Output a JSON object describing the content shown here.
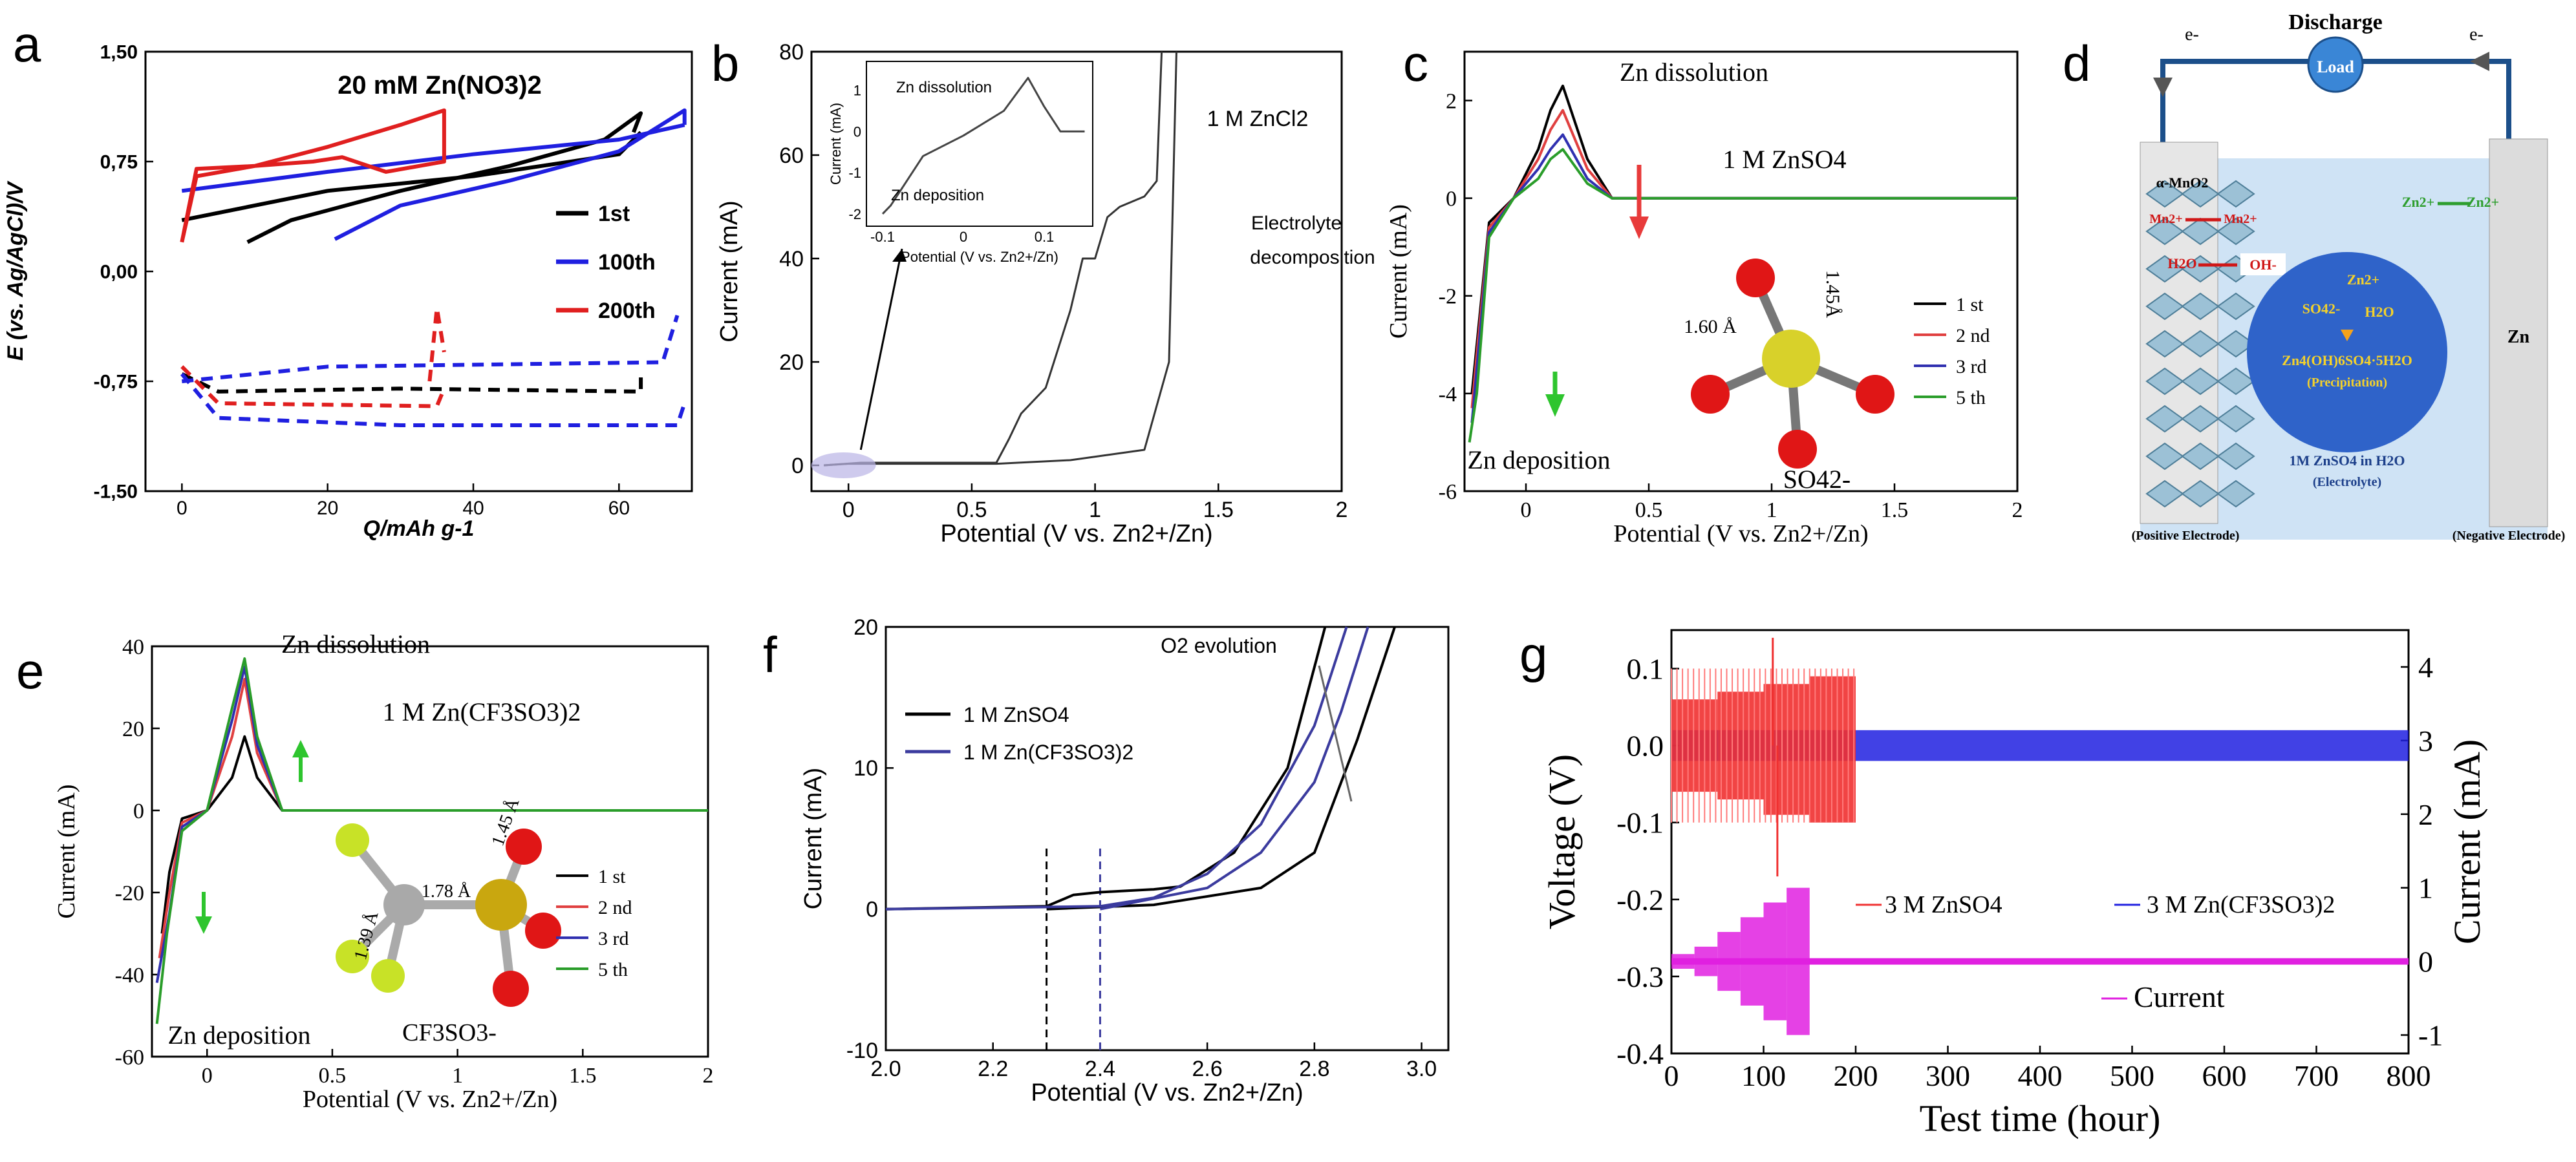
{
  "figure": {
    "panels": [
      "a",
      "b",
      "c",
      "d",
      "e",
      "f",
      "g"
    ]
  },
  "chart_data": [
    {
      "panel": "a",
      "type": "line",
      "title": "20 mM Zn(NO3)2",
      "xlabel": "Q/mAh g-1",
      "ylabel": "E (vs. Ag/AgCl)/V",
      "xlim": [
        -5,
        70
      ],
      "ylim": [
        -1.5,
        1.5
      ],
      "xticks": [
        0,
        20,
        40,
        60
      ],
      "yticks": [
        -1.5,
        -0.75,
        0.0,
        0.75,
        1.5
      ],
      "ytick_labels": [
        "-1,50",
        "-0,75",
        "0,00",
        "0,75",
        "1,50"
      ],
      "colors": {
        "1st": "#000000",
        "100th": "#1f1fe0",
        "200th": "#e01f1f"
      },
      "legend": [
        "1st",
        "100th",
        "200th"
      ],
      "series": [
        {
          "name": "1st",
          "kind": "charge",
          "x": [
            9,
            15,
            30,
            45,
            58,
            63,
            62
          ],
          "y": [
            0.2,
            0.35,
            0.55,
            0.72,
            0.9,
            1.08,
            0.95
          ]
        },
        {
          "name": "1st",
          "kind": "discharge",
          "x": [
            0,
            20,
            40,
            60,
            63
          ],
          "y": [
            0.35,
            0.55,
            0.65,
            0.8,
            0.95
          ]
        },
        {
          "name": "100th",
          "kind": "charge",
          "x": [
            21,
            30,
            45,
            60,
            69,
            69
          ],
          "y": [
            0.22,
            0.45,
            0.62,
            0.82,
            1.1,
            1.0
          ]
        },
        {
          "name": "100th",
          "kind": "discharge",
          "x": [
            0,
            20,
            40,
            60,
            69
          ],
          "y": [
            0.55,
            0.68,
            0.8,
            0.9,
            1.0
          ]
        },
        {
          "name": "200th",
          "kind": "loop",
          "x": [
            0,
            2,
            10,
            20,
            30,
            36,
            36,
            28,
            22,
            18,
            10,
            2,
            0
          ],
          "y": [
            0.2,
            0.65,
            0.72,
            0.85,
            1.0,
            1.1,
            0.75,
            0.68,
            0.78,
            0.75,
            0.72,
            0.7,
            0.2
          ]
        },
        {
          "name": "1st",
          "kind": "stripping",
          "x": [
            0,
            5,
            30,
            63,
            63
          ],
          "y": [
            -0.7,
            -0.82,
            -0.8,
            -0.82,
            -0.7
          ]
        },
        {
          "name": "100th",
          "kind": "stripping",
          "x": [
            0,
            5,
            30,
            68,
            69
          ],
          "y": [
            -0.7,
            -1.0,
            -1.05,
            -1.05,
            -0.9
          ]
        },
        {
          "name": "100th",
          "kind": "plating",
          "x": [
            0,
            20,
            66,
            68
          ],
          "y": [
            -0.75,
            -0.65,
            -0.62,
            -0.3
          ]
        },
        {
          "name": "200th",
          "kind": "stripping",
          "x": [
            0,
            5,
            35,
            36
          ],
          "y": [
            -0.65,
            -0.9,
            -0.92,
            -0.8
          ]
        },
        {
          "name": "200th",
          "kind": "spike",
          "x": [
            34,
            35,
            36
          ],
          "y": [
            -0.75,
            -0.25,
            -0.55
          ]
        }
      ]
    },
    {
      "panel": "b",
      "type": "line",
      "label": "1 M ZnCl2",
      "xlabel": "Potential (V vs. Zn2+/Zn)",
      "ylabel": "Current (mA)",
      "xlim": [
        -0.15,
        2.0
      ],
      "ylim": [
        -5,
        80
      ],
      "xticks": [
        0.0,
        0.5,
        1.0,
        1.5,
        2.0
      ],
      "yticks": [
        0,
        20,
        40,
        60,
        80
      ],
      "annotation": "Electrolyte decomposition",
      "inset": {
        "labels": [
          "Zn dissolution",
          "Zn deposition"
        ],
        "xlabel": "Potential (V vs. Zn2+/Zn)",
        "ylabel": "Current (mA)",
        "xticks": [
          -0.1,
          0.0,
          0.1
        ],
        "yticks": [
          -2,
          -1,
          0,
          1
        ],
        "x": [
          -0.1,
          -0.09,
          -0.05,
          0.0,
          0.05,
          0.08,
          0.1,
          0.12,
          0.15
        ],
        "y": [
          -2,
          -1.8,
          -0.6,
          -0.1,
          0.5,
          1.3,
          0.6,
          0.0,
          0.0
        ]
      },
      "series": [
        {
          "name": "forward",
          "x": [
            -0.1,
            0.05,
            0.6,
            0.65,
            0.7,
            0.8,
            0.9,
            0.95,
            1.0,
            1.05,
            1.1,
            1.2,
            1.25,
            1.27
          ],
          "y": [
            0,
            0.5,
            0.5,
            5,
            10,
            15,
            30,
            40,
            40,
            48,
            50,
            52,
            55,
            80
          ]
        },
        {
          "name": "reverse",
          "x": [
            -0.1,
            0.0,
            0.3,
            0.6,
            0.9,
            1.2,
            1.3,
            1.33
          ],
          "y": [
            0,
            0.3,
            0.3,
            0.3,
            1,
            3,
            20,
            80
          ]
        }
      ]
    },
    {
      "panel": "c",
      "type": "line",
      "labels": [
        "Zn dissolution",
        "1 M ZnSO4",
        "Zn deposition",
        "SO42-"
      ],
      "molecule_labels": [
        "1.60 Å",
        "1.45Å"
      ],
      "xlabel": "Potential (V vs. Zn2+/Zn)",
      "ylabel": "Current (mA)",
      "xlim": [
        -0.25,
        2.0
      ],
      "ylim": [
        -6,
        3
      ],
      "xticks": [
        0.0,
        0.5,
        1.0,
        1.5,
        2.0
      ],
      "yticks": [
        -6,
        -4,
        -2,
        0,
        2
      ],
      "legend": [
        "1 st",
        "2 nd",
        "3 rd",
        "5 th"
      ],
      "colors": [
        "#000000",
        "#e04040",
        "#3030b0",
        "#2a9d2a"
      ],
      "series": [
        {
          "name": "1 st",
          "x": [
            -0.22,
            -0.2,
            -0.15,
            -0.05,
            0.05,
            0.1,
            0.15,
            0.25,
            0.35,
            2.0
          ],
          "y": [
            -4.0,
            -3.0,
            -0.5,
            0.0,
            1.0,
            1.8,
            2.3,
            0.8,
            0.0,
            0.0
          ]
        },
        {
          "name": "2 nd",
          "x": [
            -0.22,
            -0.2,
            -0.15,
            -0.05,
            0.05,
            0.1,
            0.15,
            0.25,
            0.35,
            2.0
          ],
          "y": [
            -4.3,
            -3.2,
            -0.6,
            0.0,
            0.8,
            1.4,
            1.8,
            0.6,
            0.0,
            0.0
          ]
        },
        {
          "name": "3 rd",
          "x": [
            -0.22,
            -0.2,
            -0.15,
            -0.05,
            0.05,
            0.1,
            0.15,
            0.25,
            0.35,
            2.0
          ],
          "y": [
            -4.6,
            -3.5,
            -0.7,
            0.0,
            0.6,
            1.0,
            1.3,
            0.4,
            0.0,
            0.0
          ]
        },
        {
          "name": "5 th",
          "x": [
            -0.23,
            -0.2,
            -0.15,
            -0.05,
            0.05,
            0.1,
            0.15,
            0.25,
            0.35,
            2.0
          ],
          "y": [
            -5.0,
            -4.0,
            -0.8,
            0.0,
            0.4,
            0.8,
            1.0,
            0.3,
            0.0,
            0.0
          ]
        }
      ]
    },
    {
      "panel": "e",
      "type": "line",
      "labels": [
        "Zn dissolution",
        "1 M Zn(CF3SO3)2",
        "Zn deposition",
        "CF3SO3-"
      ],
      "molecule_labels": [
        "1.78 Å",
        "1.45 Å",
        "1.39 Å"
      ],
      "xlabel": "Potential (V vs. Zn2+/Zn)",
      "ylabel": "Current (mA)",
      "xlim": [
        -0.22,
        2.0
      ],
      "ylim": [
        -60,
        40
      ],
      "xticks": [
        0.0,
        0.5,
        1.0,
        1.5,
        2.0
      ],
      "yticks": [
        -60,
        -40,
        -20,
        0,
        20,
        40
      ],
      "legend": [
        "1 st",
        "2 nd",
        "3 rd",
        "5 th"
      ],
      "colors": [
        "#000000",
        "#e04040",
        "#3030b0",
        "#2a9d2a"
      ],
      "series": [
        {
          "name": "1 st",
          "x": [
            -0.18,
            -0.15,
            -0.1,
            0.0,
            0.1,
            0.15,
            0.2,
            0.3,
            2.0
          ],
          "y": [
            -30,
            -15,
            -2,
            0,
            8,
            18,
            8,
            0,
            0
          ]
        },
        {
          "name": "2 nd",
          "x": [
            -0.19,
            -0.15,
            -0.1,
            0.0,
            0.1,
            0.15,
            0.2,
            0.3,
            2.0
          ],
          "y": [
            -36,
            -20,
            -3,
            0,
            18,
            32,
            14,
            0,
            0
          ]
        },
        {
          "name": "3 rd",
          "x": [
            -0.2,
            -0.15,
            -0.1,
            0.0,
            0.1,
            0.15,
            0.2,
            0.3,
            2.0
          ],
          "y": [
            -42,
            -25,
            -4,
            0,
            22,
            35,
            16,
            0,
            0
          ]
        },
        {
          "name": "5 th",
          "x": [
            -0.2,
            -0.16,
            -0.1,
            0.0,
            0.1,
            0.15,
            0.2,
            0.3,
            2.0
          ],
          "y": [
            -52,
            -30,
            -5,
            0,
            25,
            37,
            18,
            0,
            0
          ]
        }
      ]
    },
    {
      "panel": "f",
      "type": "line",
      "annotation": "O2 evolution",
      "xlabel": "Potential (V vs. Zn2+/Zn)",
      "ylabel": "Current (mA)",
      "xlim": [
        2.0,
        3.05
      ],
      "ylim": [
        -10,
        20
      ],
      "xticks": [
        2.0,
        2.2,
        2.4,
        2.6,
        2.8,
        3.0
      ],
      "yticks": [
        -10,
        0,
        10,
        20
      ],
      "dashed_lines_x": [
        2.3,
        2.4
      ],
      "legend": [
        "1 M ZnSO4",
        "1 M Zn(CF3SO3)2"
      ],
      "colors": [
        "#000000",
        "#3b3b9e"
      ],
      "series": [
        {
          "name": "1 M ZnSO4 fwd",
          "x": [
            2.0,
            2.3,
            2.35,
            2.4,
            2.5,
            2.55,
            2.65,
            2.75,
            2.82
          ],
          "y": [
            0,
            0.2,
            1.0,
            1.2,
            1.4,
            1.6,
            4,
            10,
            20
          ]
        },
        {
          "name": "1 M ZnSO4 rev",
          "x": [
            2.3,
            2.5,
            2.7,
            2.8,
            2.88,
            2.95
          ],
          "y": [
            0,
            0.3,
            1.5,
            4,
            12,
            20
          ]
        },
        {
          "name": "1 M Zn(CF3SO3)2 fwd",
          "x": [
            2.0,
            2.4,
            2.5,
            2.6,
            2.7,
            2.8,
            2.86
          ],
          "y": [
            0,
            0.2,
            0.8,
            2.5,
            6,
            13,
            20
          ]
        },
        {
          "name": "1 M Zn(CF3SO3)2 rev",
          "x": [
            2.4,
            2.6,
            2.7,
            2.8,
            2.85,
            2.9
          ],
          "y": [
            0,
            1.5,
            4,
            9,
            14,
            20
          ]
        }
      ]
    },
    {
      "panel": "g",
      "type": "line",
      "xlabel": "Test time (hour)",
      "ylabel": "Voltage (V)",
      "y2label": "Current (mA)",
      "xlim": [
        0,
        800
      ],
      "ylim": [
        -0.4,
        0.15
      ],
      "y2lim": [
        -1.25,
        4.5
      ],
      "xticks": [
        0,
        100,
        200,
        300,
        400,
        500,
        600,
        700,
        800
      ],
      "yticks": [
        -0.4,
        -0.3,
        -0.2,
        -0.1,
        0.0,
        0.1
      ],
      "y2ticks": [
        -1,
        0,
        1,
        2,
        3,
        4
      ],
      "legend": [
        "3 M ZnSO4",
        "3 M Zn(CF3SO3)2",
        "Current"
      ],
      "colors": [
        "#f03030",
        "#2020e0",
        "#e020e0"
      ],
      "series": [
        {
          "name": "3 M ZnSO4",
          "band": {
            "x": [
              0,
              50,
              100,
              150,
              200
            ],
            "ymin": [
              -0.06,
              -0.07,
              -0.09,
              -0.1,
              -0.1
            ],
            "ymax": [
              0.06,
              0.07,
              0.08,
              0.09,
              0.1
            ]
          }
        },
        {
          "name": "3 M Zn(CF3SO3)2",
          "band": {
            "x": [
              0,
              200,
              800
            ],
            "ymin": [
              -0.02,
              -0.02,
              -0.02
            ],
            "ymax": [
              0.02,
              0.02,
              0.02
            ]
          }
        },
        {
          "name": "Current",
          "axis": "y2",
          "steps": {
            "x": [
              0,
              25,
              50,
              75,
              100,
              125,
              150,
              800
            ],
            "amplitude": [
              0.1,
              0.2,
              0.4,
              0.6,
              0.8,
              1.0,
              0.0,
              0.0
            ]
          }
        }
      ]
    }
  ],
  "schematic_d": {
    "title": "Discharge",
    "load": "Load",
    "electrons": [
      "e-",
      "e-"
    ],
    "labels": {
      "mno2": "α-MnO2",
      "mn_left": "Mn2+",
      "mn_right": "Mn2+",
      "water": "H2O",
      "oh": "OH-",
      "zn_in": "Zn2+",
      "zn_out": "Zn2+",
      "zn_bubble": "Zn2+",
      "so4": "SO42-",
      "h2o_bubble": "H2O",
      "precip_formula": "Zn4(OH)6SO4·5H2O",
      "precip_label": "(Precipitation)",
      "electrolyte": "1M ZnSO4 in H2O",
      "electrolyte_label": "(Electrolyte)",
      "zn_electrode": "Zn",
      "positive": "(Positive Electrode)",
      "negative": "(Negative Electrode)"
    }
  }
}
